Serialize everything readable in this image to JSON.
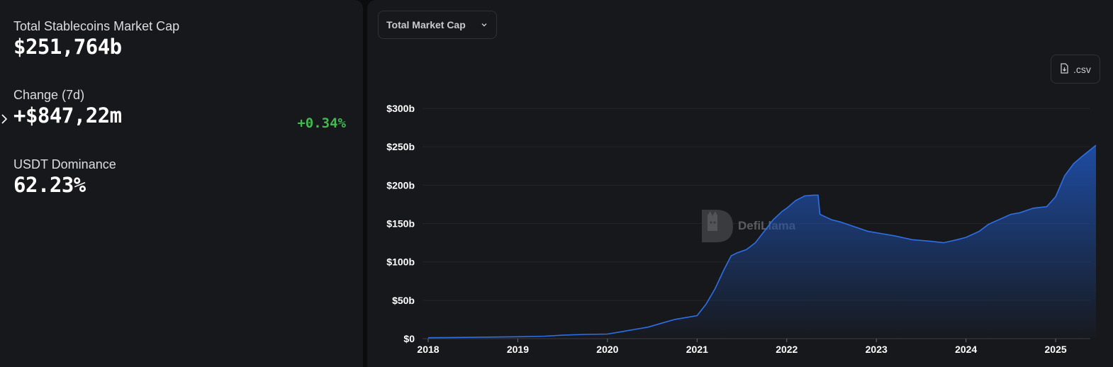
{
  "stats": {
    "market_cap": {
      "label": "Total Stablecoins Market Cap",
      "value": "$251,764b"
    },
    "change": {
      "label": "Change (7d)",
      "value": "+$847,22m",
      "percent": "+0.34%",
      "percent_color": "#3fb950"
    },
    "dominance": {
      "label": "USDT Dominance",
      "value": "62.23%"
    }
  },
  "toolbar": {
    "metric_select": "Total Market Cap",
    "csv_label": ".csv"
  },
  "icons": {
    "chevron": "chevron-down-icon",
    "csv": "file-download-icon",
    "expand": "chevron-right-icon"
  },
  "colors": {
    "line": "#2f6fe4",
    "area_top": "#1e4ea8",
    "positive": "#3fb950"
  },
  "watermark": "DefiLlama",
  "chart_data": {
    "type": "area",
    "x_ticks": [
      "2018",
      "2019",
      "2020",
      "2021",
      "2022",
      "2023",
      "2024",
      "2025"
    ],
    "y_ticks": [
      "$0",
      "$50b",
      "$100b",
      "$150b",
      "$200b",
      "$250b",
      "$300b"
    ],
    "ylim": [
      0,
      300
    ],
    "xlim": [
      2018.0,
      2025.45
    ],
    "y_unit": "billions USD",
    "grid": true,
    "series": [
      {
        "x": [
          2018.0,
          2018.5,
          2019.0,
          2019.3,
          2019.5,
          2019.75,
          2020.0,
          2020.15,
          2020.3,
          2020.45,
          2020.6,
          2020.75,
          2020.9,
          2021.0,
          2021.1,
          2021.2,
          2021.3,
          2021.38,
          2021.45,
          2021.55,
          2021.65,
          2021.75,
          2021.85,
          2021.95,
          2022.0,
          2022.1,
          2022.2,
          2022.3,
          2022.35,
          2022.37,
          2022.5,
          2022.6,
          2022.75,
          2022.9,
          2023.0,
          2023.2,
          2023.4,
          2023.6,
          2023.75,
          2023.9,
          2024.0,
          2024.15,
          2024.25,
          2024.5,
          2024.6,
          2024.75,
          2024.9,
          2025.0,
          2025.1,
          2025.2,
          2025.3,
          2025.45
        ],
        "y": [
          1.2,
          1.8,
          2.5,
          3.2,
          4.5,
          5.5,
          6.0,
          9.0,
          12.0,
          15.0,
          20.0,
          25.0,
          28.0,
          30.0,
          45.0,
          65.0,
          90.0,
          108.0,
          112.0,
          116.0,
          125.0,
          140.0,
          155.0,
          166.0,
          170.0,
          180.0,
          186.0,
          187.0,
          187.0,
          162.0,
          155.0,
          152.0,
          146.0,
          140.0,
          138.0,
          134.0,
          129.0,
          127.0,
          125.0,
          129.0,
          132.0,
          140.0,
          149.0,
          162.0,
          164.0,
          170.0,
          172.0,
          185.0,
          212.0,
          228.0,
          238.0,
          252.0
        ]
      }
    ]
  }
}
